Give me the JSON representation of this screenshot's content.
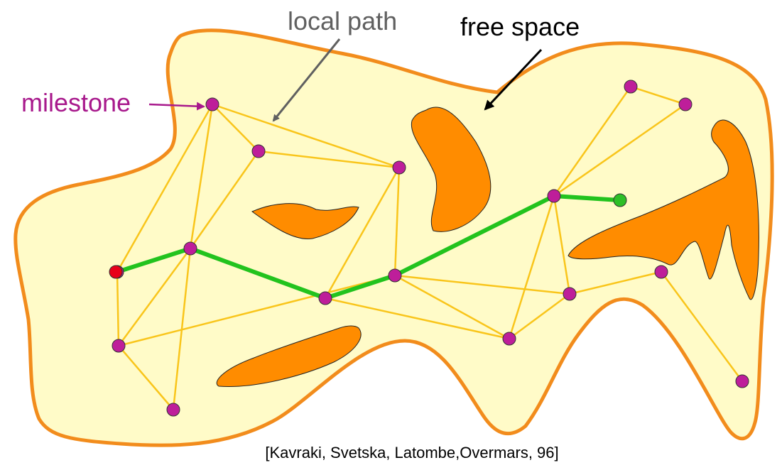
{
  "labels": {
    "local_path": "local path",
    "free_space": "free space",
    "milestone": "milestone",
    "citation": "[Kavraki, Svetska, Latombe,Overmars, 96]"
  },
  "colors": {
    "free_space_fill": "#FFFBC8",
    "boundary": "#F28C1C",
    "obstacle": "#FF8C00",
    "edge": "#F9C51B",
    "milestone": "#BE1E9A",
    "path": "#22C31E",
    "start": "#E8001A",
    "goal": "#2DBF27",
    "local_path_label": "#606060",
    "milestone_label": "#A8198C"
  }
}
